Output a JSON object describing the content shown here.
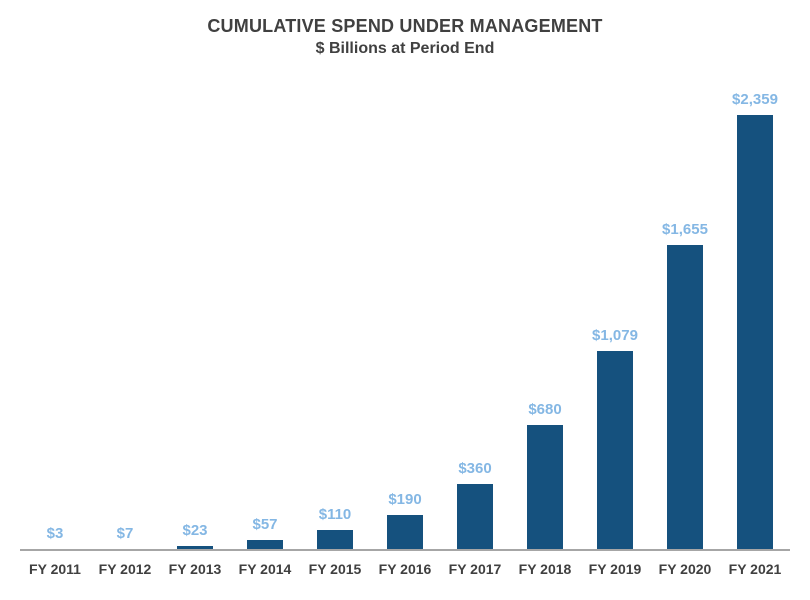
{
  "chart_data": {
    "type": "bar",
    "title": "CUMULATIVE SPEND UNDER MANAGEMENT",
    "subtitle": "$ Billions at Period End",
    "categories": [
      "FY 2011",
      "FY 2012",
      "FY 2013",
      "FY 2014",
      "FY 2015",
      "FY 2016",
      "FY 2017",
      "FY 2018",
      "FY 2019",
      "FY 2020",
      "FY 2021"
    ],
    "values": [
      3,
      7,
      23,
      57,
      110,
      190,
      360,
      680,
      1079,
      1655,
      2359
    ],
    "value_labels": [
      "$3",
      "$7",
      "$23",
      "$57",
      "$110",
      "$190",
      "$360",
      "$680",
      "$1,079",
      "$1,655",
      "$2,359"
    ],
    "xlabel": "",
    "ylabel": "",
    "ylim": [
      0,
      2359
    ],
    "grid": false,
    "legend": "none",
    "y_axis_visible": false,
    "value_label_position": "above-bar",
    "colors": {
      "bar": "#15517E",
      "value_label": "#84B7E4",
      "title_text": "#404040",
      "axis_label_text": "#404040",
      "axis_line": "#A6A6A6",
      "background": "#FFFFFF"
    }
  }
}
